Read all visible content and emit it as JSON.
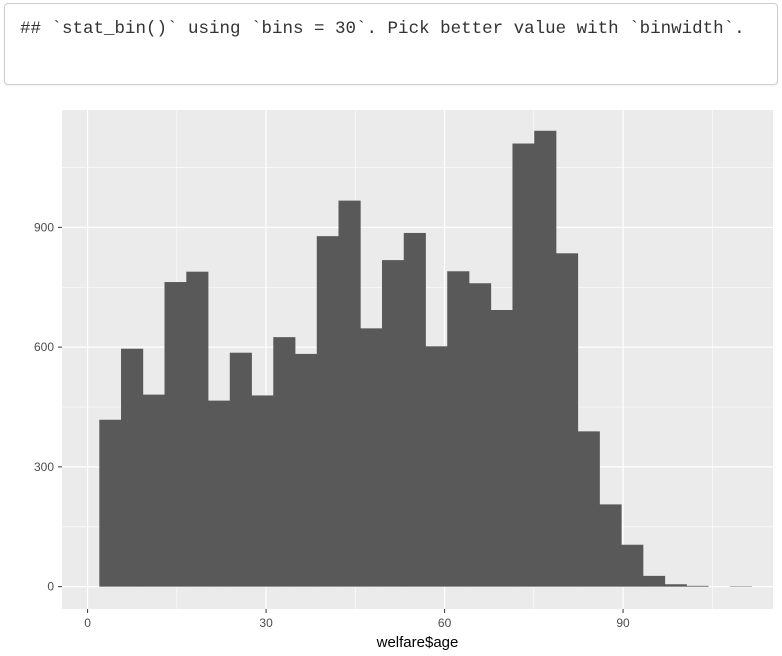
{
  "console": {
    "output_text": "## `stat_bin()` using `bins = 30`. Pick better value with `binwidth`."
  },
  "chart_data": {
    "type": "histogram",
    "xlabel": "welfare$age",
    "ylabel": "",
    "xlim": [
      -4.3,
      115.2
    ],
    "ylim": [
      -56,
      1194
    ],
    "x_ticks": [
      0,
      30,
      60,
      90
    ],
    "y_ticks": [
      0,
      300,
      600,
      900
    ],
    "x_minor_ticks": [
      15,
      45,
      75,
      105
    ],
    "y_minor_ticks": [
      150,
      450,
      750,
      1050
    ],
    "bins_count": 30,
    "bin_edges": [
      1.97,
      5.62,
      9.28,
      12.93,
      16.59,
      20.24,
      23.9,
      27.55,
      31.21,
      34.86,
      38.52,
      42.17,
      45.83,
      49.48,
      53.14,
      56.79,
      60.45,
      64.1,
      67.76,
      71.41,
      75.07,
      78.72,
      82.38,
      86.03,
      89.69,
      93.34,
      97.0,
      100.65,
      104.31,
      107.96,
      111.62
    ],
    "counts": [
      418,
      596,
      481,
      763,
      789,
      466,
      586,
      479,
      625,
      583,
      878,
      967,
      647,
      818,
      886,
      602,
      790,
      760,
      693,
      1110,
      1142,
      835,
      389,
      206,
      105,
      27,
      6,
      2,
      0,
      1
    ],
    "bar_color": "#595959",
    "panel_background": "#ebebeb",
    "grid": true,
    "grid_color": "#ffffff",
    "legend": "none"
  }
}
